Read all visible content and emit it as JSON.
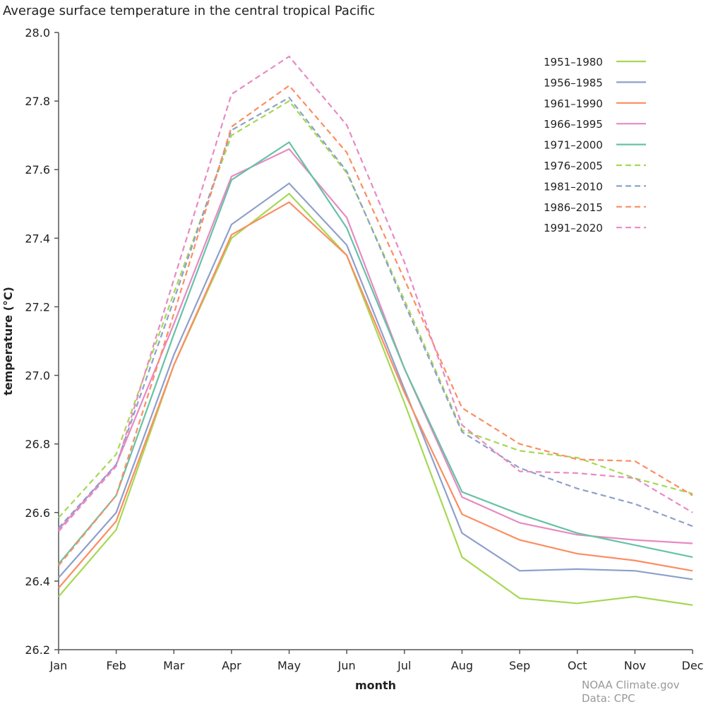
{
  "chart_data": {
    "type": "line",
    "title": "Average surface temperature in the central tropical Pacific",
    "xlabel": "month",
    "ylabel": "temperature (°C)",
    "categories": [
      "Jan",
      "Feb",
      "Mar",
      "Apr",
      "May",
      "Jun",
      "Jul",
      "Aug",
      "Sep",
      "Oct",
      "Nov",
      "Dec"
    ],
    "ylim": [
      26.2,
      28.0
    ],
    "yticks": [
      "26.2",
      "26.4",
      "26.6",
      "26.8",
      "27.0",
      "27.2",
      "27.4",
      "27.6",
      "27.8",
      "28.0"
    ],
    "grid": false,
    "legend_position": "top-right",
    "series": [
      {
        "name": "1951–1980",
        "color": "#a6d854",
        "dash": false,
        "values": [
          26.355,
          26.55,
          27.03,
          27.4,
          27.53,
          27.35,
          26.92,
          26.47,
          26.35,
          26.335,
          26.355,
          26.33
        ]
      },
      {
        "name": "1956–1985",
        "color": "#8da0cb",
        "dash": false,
        "values": [
          26.41,
          26.6,
          27.06,
          27.44,
          27.56,
          27.38,
          26.96,
          26.54,
          26.43,
          26.435,
          26.43,
          26.405
        ]
      },
      {
        "name": "1961–1990",
        "color": "#fc8d62",
        "dash": false,
        "values": [
          26.38,
          26.575,
          27.03,
          27.41,
          27.505,
          27.35,
          26.95,
          26.595,
          26.52,
          26.48,
          26.46,
          26.43
        ]
      },
      {
        "name": "1966–1995",
        "color": "#e78ac3",
        "dash": false,
        "values": [
          26.55,
          26.74,
          27.15,
          27.58,
          27.66,
          27.46,
          27.02,
          26.645,
          26.57,
          26.535,
          26.52,
          26.51
        ]
      },
      {
        "name": "1971–2000",
        "color": "#66c2a5",
        "dash": false,
        "values": [
          26.45,
          26.65,
          27.12,
          27.57,
          27.68,
          27.43,
          27.02,
          26.66,
          26.595,
          26.54,
          26.505,
          26.47
        ]
      },
      {
        "name": "1976–2005",
        "color": "#a6d854",
        "dash": true,
        "values": [
          26.585,
          26.77,
          27.24,
          27.7,
          27.8,
          27.59,
          27.22,
          26.84,
          26.78,
          26.76,
          26.7,
          26.655
        ]
      },
      {
        "name": "1981–2010",
        "color": "#8da0cb",
        "dash": true,
        "values": [
          26.555,
          26.74,
          27.22,
          27.715,
          27.81,
          27.595,
          27.21,
          26.835,
          26.73,
          26.67,
          26.625,
          26.56
        ]
      },
      {
        "name": "1986–2015",
        "color": "#fc8d62",
        "dash": true,
        "values": [
          26.445,
          26.65,
          27.18,
          27.725,
          27.845,
          27.65,
          27.28,
          26.905,
          26.8,
          26.755,
          26.75,
          26.65
        ]
      },
      {
        "name": "1991–2020",
        "color": "#e78ac3",
        "dash": true,
        "values": [
          26.545,
          26.735,
          27.28,
          27.82,
          27.93,
          27.73,
          27.33,
          26.855,
          26.72,
          26.715,
          26.7,
          26.6
        ]
      }
    ]
  },
  "credit": {
    "line1": "NOAA Climate.gov",
    "line2": "Data: CPC"
  }
}
